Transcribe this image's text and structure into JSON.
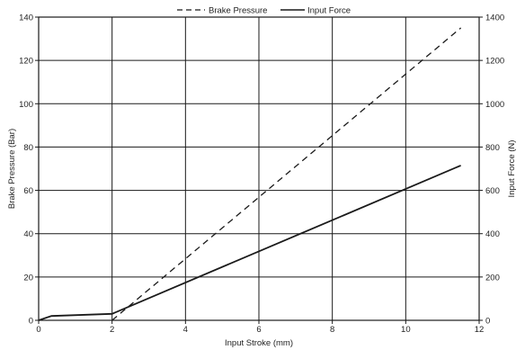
{
  "chart_data": {
    "type": "line",
    "xlabel": "Input Stroke (mm)",
    "ylabel_left": "Brake Pressure (Bar)",
    "ylabel_right": "Input Force (N)",
    "xlim": [
      0,
      12
    ],
    "ylim_left": [
      0,
      140
    ],
    "ylim_right": [
      0,
      1400
    ],
    "x_ticks": [
      0,
      2,
      4,
      6,
      8,
      10,
      12
    ],
    "y_ticks_left": [
      0,
      20,
      40,
      60,
      80,
      100,
      120,
      140
    ],
    "y_ticks_right": [
      0,
      200,
      400,
      600,
      800,
      1000,
      1200,
      1400
    ],
    "grid": true,
    "legend_position": "top-center",
    "series": [
      {
        "name": "Brake Pressure",
        "axis": "left",
        "style": "dashed",
        "color": "#1a1a1a",
        "x": [
          2,
          11.5
        ],
        "y": [
          0,
          135
        ]
      },
      {
        "name": "Input Force",
        "axis": "right",
        "style": "solid",
        "color": "#1a1a1a",
        "x": [
          0,
          0.35,
          2,
          11.5
        ],
        "y": [
          0,
          20,
          30,
          715
        ]
      }
    ]
  }
}
